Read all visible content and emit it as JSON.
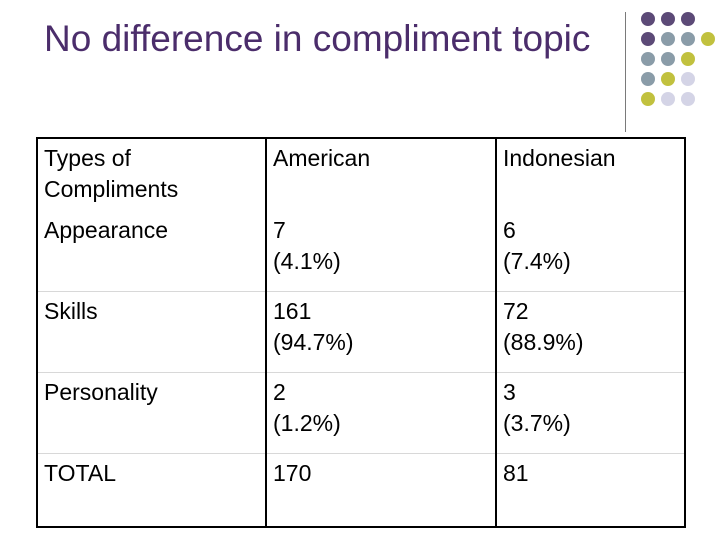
{
  "slide": {
    "title": "No difference in compliment topic",
    "colors": {
      "title": "#4b2d6b",
      "dot_purple": "#5c4a77",
      "dot_slate": "#8a9ca8",
      "dot_olive": "#c1c13e",
      "dot_lavender": "#d4d4e6"
    }
  },
  "table": {
    "headers": [
      "Types of Compliments",
      "American",
      "Indonesian"
    ],
    "rows": [
      {
        "type": "Appearance",
        "american": "7",
        "american_pct": "(4.1%)",
        "indonesian": "6",
        "indonesian_pct": "(7.4%)"
      },
      {
        "type": "Skills",
        "american": "161",
        "american_pct": "(94.7%)",
        "indonesian": "72",
        "indonesian_pct": "(88.9%)"
      },
      {
        "type": "Personality",
        "american": "2",
        "american_pct": "(1.2%)",
        "indonesian": "3",
        "indonesian_pct": "(3.7%)"
      },
      {
        "type": "TOTAL",
        "american": "170",
        "american_pct": "",
        "indonesian": "81",
        "indonesian_pct": ""
      }
    ]
  }
}
